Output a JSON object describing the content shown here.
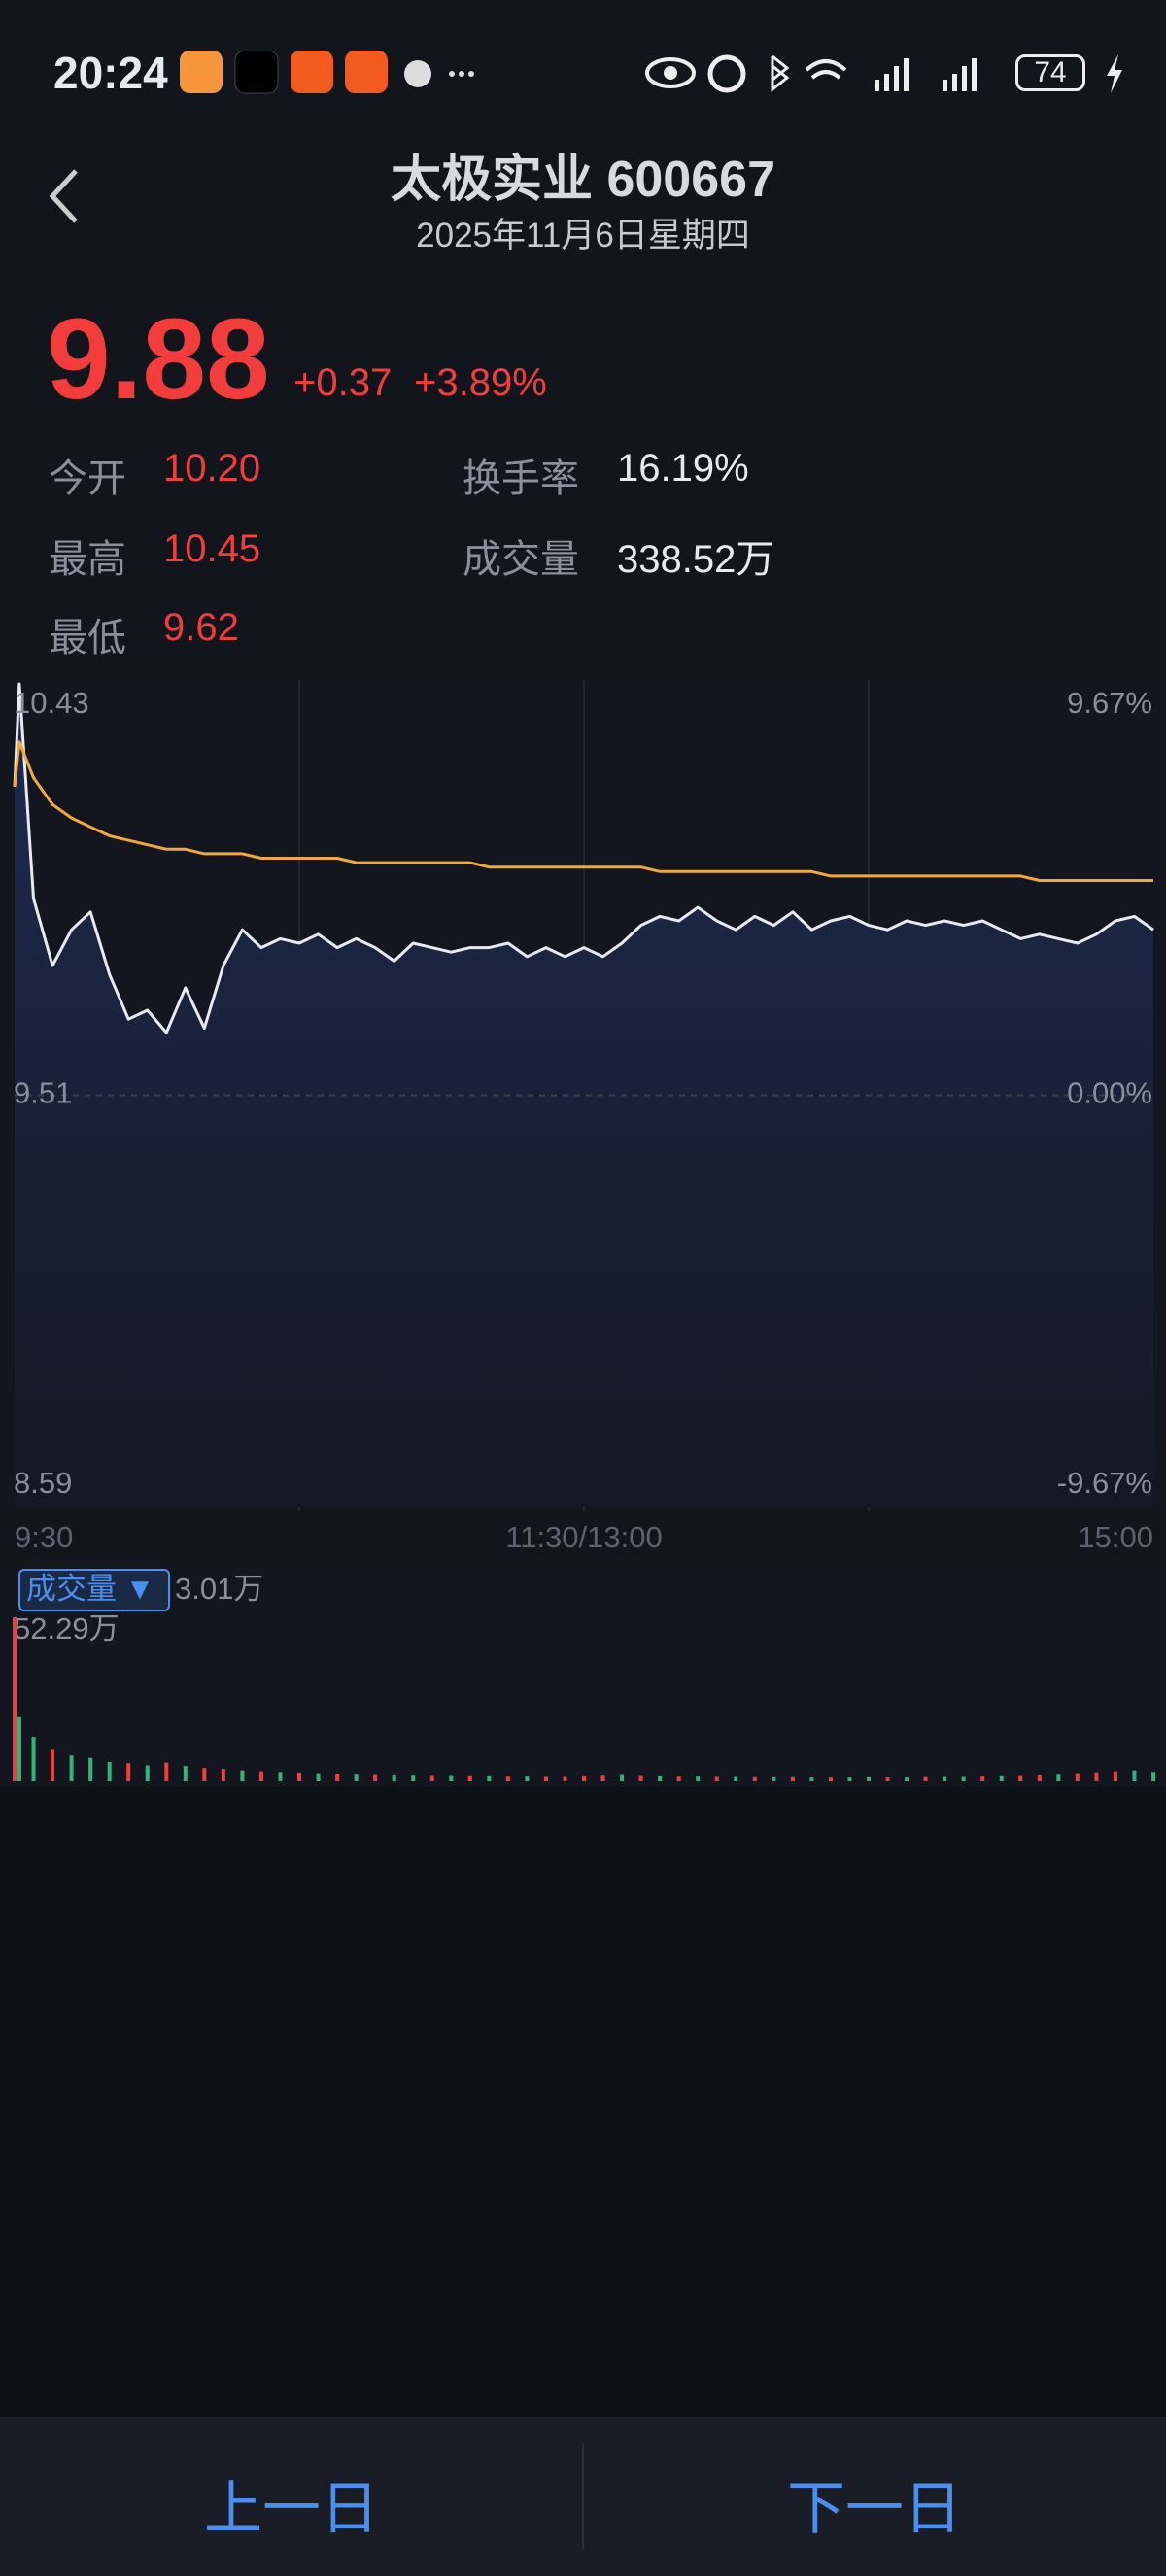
{
  "status_bar": {
    "time": "20:24",
    "battery": "74"
  },
  "header": {
    "title": "太极实业 600667",
    "date": "2025年11月6日星期四"
  },
  "quote": {
    "price": "9.88",
    "change": "+0.37",
    "change_pct": "+3.89%"
  },
  "stats": [
    {
      "label": "今开",
      "value": "10.20"
    },
    {
      "label": "换手率",
      "value": "16.19%"
    },
    {
      "label": "最高",
      "value": "10.45"
    },
    {
      "label": "成交量",
      "value": "338.52万"
    },
    {
      "label": "最低",
      "value": "9.62"
    }
  ],
  "chart_data": [
    {
      "type": "line",
      "x": [
        0,
        1,
        4,
        8,
        12,
        16,
        20,
        24,
        28,
        32,
        36,
        40,
        44,
        48,
        52,
        56,
        60,
        64,
        68,
        72,
        76,
        80,
        84,
        88,
        92,
        96,
        100,
        104,
        108,
        112,
        116,
        120,
        124,
        128,
        132,
        136,
        140,
        144,
        148,
        152,
        156,
        160,
        164,
        168,
        172,
        176,
        180,
        184,
        188,
        192,
        196,
        200,
        204,
        208,
        212,
        216,
        220,
        224,
        228,
        232,
        236,
        240
      ],
      "series": [
        {
          "color": "#e8eaf0",
          "fill": "#1c2a4c",
          "values": [
            10.2,
            10.43,
            9.95,
            9.8,
            9.88,
            9.92,
            9.78,
            9.68,
            9.7,
            9.65,
            9.75,
            9.66,
            9.8,
            9.88,
            9.84,
            9.86,
            9.85,
            9.87,
            9.84,
            9.86,
            9.84,
            9.81,
            9.85,
            9.84,
            9.83,
            9.84,
            9.84,
            9.85,
            9.82,
            9.84,
            9.82,
            9.84,
            9.82,
            9.85,
            9.89,
            9.91,
            9.9,
            9.93,
            9.9,
            9.88,
            9.91,
            9.89,
            9.92,
            9.88,
            9.9,
            9.91,
            9.89,
            9.88,
            9.9,
            9.89,
            9.9,
            9.89,
            9.9,
            9.88,
            9.86,
            9.87,
            9.86,
            9.85,
            9.87,
            9.9,
            9.91,
            9.88
          ]
        },
        {
          "color": "#f2a93b",
          "values": [
            10.2,
            10.3,
            10.22,
            10.16,
            10.13,
            10.11,
            10.09,
            10.08,
            10.07,
            10.06,
            10.06,
            10.05,
            10.05,
            10.05,
            10.04,
            10.04,
            10.04,
            10.04,
            10.04,
            10.03,
            10.03,
            10.03,
            10.03,
            10.03,
            10.03,
            10.03,
            10.02,
            10.02,
            10.02,
            10.02,
            10.02,
            10.02,
            10.02,
            10.02,
            10.02,
            10.01,
            10.01,
            10.01,
            10.01,
            10.01,
            10.01,
            10.01,
            10.01,
            10.01,
            10.0,
            10.0,
            10.0,
            10.0,
            10.0,
            10.0,
            10.0,
            10.0,
            10.0,
            10.0,
            10.0,
            9.99,
            9.99,
            9.99,
            9.99,
            9.99,
            9.99,
            9.99
          ]
        }
      ],
      "xlim": [
        0,
        240
      ],
      "xticks": [
        {
          "value": 0,
          "label": "9:30"
        },
        {
          "value": 120,
          "label": "11:30/13:00"
        },
        {
          "value": 240,
          "label": "15:00"
        }
      ],
      "xgrid": [
        60,
        120,
        180
      ],
      "ylim": [
        8.59,
        10.43
      ],
      "yticks": [
        10.43,
        9.51,
        8.59
      ],
      "y2lim": [
        -9.67,
        9.67
      ],
      "y2ticks": [
        {
          "value": 9.67,
          "label": "9.67%"
        },
        {
          "value": 0,
          "label": "0.00%"
        },
        {
          "value": -9.67,
          "label": "-9.67%"
        }
      ],
      "reference": 9.51
    },
    {
      "type": "bar",
      "title": "成交量 ▼",
      "current_label": "3.01万",
      "x": [
        0,
        1,
        4,
        8,
        12,
        16,
        20,
        24,
        28,
        32,
        36,
        40,
        44,
        48,
        52,
        56,
        60,
        64,
        68,
        72,
        76,
        80,
        84,
        88,
        92,
        96,
        100,
        104,
        108,
        112,
        116,
        120,
        124,
        128,
        132,
        136,
        140,
        144,
        148,
        152,
        156,
        160,
        164,
        168,
        172,
        176,
        180,
        184,
        188,
        192,
        196,
        200,
        204,
        208,
        212,
        216,
        220,
        224,
        228,
        232,
        236,
        240
      ],
      "values": [
        52.29,
        20.5,
        14.2,
        10.1,
        8.3,
        7.5,
        6.2,
        5.8,
        5.1,
        6.0,
        4.9,
        4.3,
        4.0,
        3.5,
        3.2,
        3.0,
        2.8,
        2.6,
        2.5,
        2.4,
        2.3,
        2.2,
        2.1,
        2.0,
        2.0,
        1.9,
        1.9,
        1.8,
        1.8,
        1.7,
        1.7,
        1.9,
        2.1,
        2.3,
        2.0,
        1.9,
        1.8,
        1.8,
        1.7,
        1.7,
        1.6,
        1.6,
        1.6,
        1.5,
        1.5,
        1.5,
        1.6,
        1.5,
        1.5,
        1.6,
        1.7,
        1.7,
        1.8,
        1.9,
        2.0,
        2.2,
        2.4,
        2.6,
        2.9,
        3.2,
        3.5,
        3.01
      ],
      "colors": [
        "#f23d3d",
        "#2fb57a",
        "#2fb57a",
        "#f23d3d",
        "#2fb57a",
        "#2fb57a",
        "#2fb57a",
        "#f23d3d",
        "#2fb57a",
        "#f23d3d",
        "#2fb57a",
        "#f23d3d",
        "#f23d3d",
        "#2fb57a",
        "#f23d3d",
        "#2fb57a",
        "#f23d3d",
        "#2fb57a",
        "#f23d3d",
        "#2fb57a",
        "#f23d3d",
        "#2fb57a",
        "#2fb57a",
        "#f23d3d",
        "#2fb57a",
        "#f23d3d",
        "#2fb57a",
        "#f23d3d",
        "#2fb57a",
        "#f23d3d",
        "#f23d3d",
        "#f23d3d",
        "#f23d3d",
        "#2fb57a",
        "#f23d3d",
        "#2fb57a",
        "#f23d3d",
        "#2fb57a",
        "#f23d3d",
        "#2fb57a",
        "#f23d3d",
        "#2fb57a",
        "#f23d3d",
        "#2fb57a",
        "#f23d3d",
        "#2fb57a",
        "#2fb57a",
        "#f23d3d",
        "#2fb57a",
        "#f23d3d",
        "#2fb57a",
        "#2fb57a",
        "#f23d3d",
        "#2fb57a",
        "#f23d3d",
        "#f23d3d",
        "#2fb57a",
        "#f23d3d",
        "#f23d3d",
        "#f23d3d",
        "#2fb57a",
        "#2fb57a"
      ],
      "xlim": [
        0,
        240
      ],
      "ylim": [
        0,
        52.29
      ],
      "yticks": [
        {
          "value": 52.29,
          "label": "52.29万"
        }
      ]
    }
  ],
  "footer": {
    "prev": "上一日",
    "next": "下一日"
  }
}
